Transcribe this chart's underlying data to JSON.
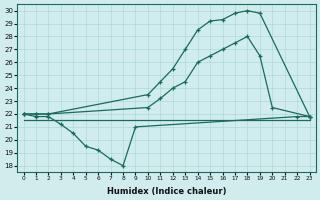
{
  "bg_color": "#d0ecec",
  "line_color": "#1a6b5a",
  "grid_color": "#b0d8d8",
  "xlabel": "Humidex (Indice chaleur)",
  "xlim": [
    -0.5,
    23.5
  ],
  "ylim": [
    17.5,
    30.5
  ],
  "yticks": [
    18,
    19,
    20,
    21,
    22,
    23,
    24,
    25,
    26,
    27,
    28,
    29,
    30
  ],
  "xticks": [
    0,
    1,
    2,
    3,
    4,
    5,
    6,
    7,
    8,
    9,
    10,
    11,
    12,
    13,
    14,
    15,
    16,
    17,
    18,
    19,
    20,
    21,
    22,
    23
  ],
  "series": [
    {
      "x": [
        0,
        1,
        2,
        3,
        4,
        5,
        6,
        7,
        8,
        9,
        22,
        23
      ],
      "y": [
        22,
        21.8,
        21.8,
        21.2,
        20.5,
        19.5,
        19.2,
        18.5,
        18.0,
        21.0,
        21.8,
        21.8
      ],
      "has_markers": true
    },
    {
      "x": [
        0,
        19,
        23
      ],
      "y": [
        21.5,
        21.5,
        21.5
      ],
      "has_markers": false
    },
    {
      "x": [
        0,
        1,
        2,
        10,
        11,
        12,
        13,
        14,
        15,
        16,
        17,
        18,
        19,
        23
      ],
      "y": [
        22,
        22,
        22,
        23.5,
        24.5,
        25.5,
        27.0,
        28.5,
        29.2,
        29.3,
        29.8,
        30.0,
        29.8,
        21.8
      ],
      "has_markers": true
    },
    {
      "x": [
        0,
        1,
        2,
        10,
        11,
        12,
        13,
        14,
        15,
        16,
        17,
        18,
        19,
        20,
        23
      ],
      "y": [
        22,
        22,
        22,
        22.5,
        23.2,
        24.0,
        24.5,
        26.0,
        26.5,
        27.0,
        27.5,
        28.0,
        26.5,
        22.5,
        21.8
      ],
      "has_markers": true
    }
  ]
}
